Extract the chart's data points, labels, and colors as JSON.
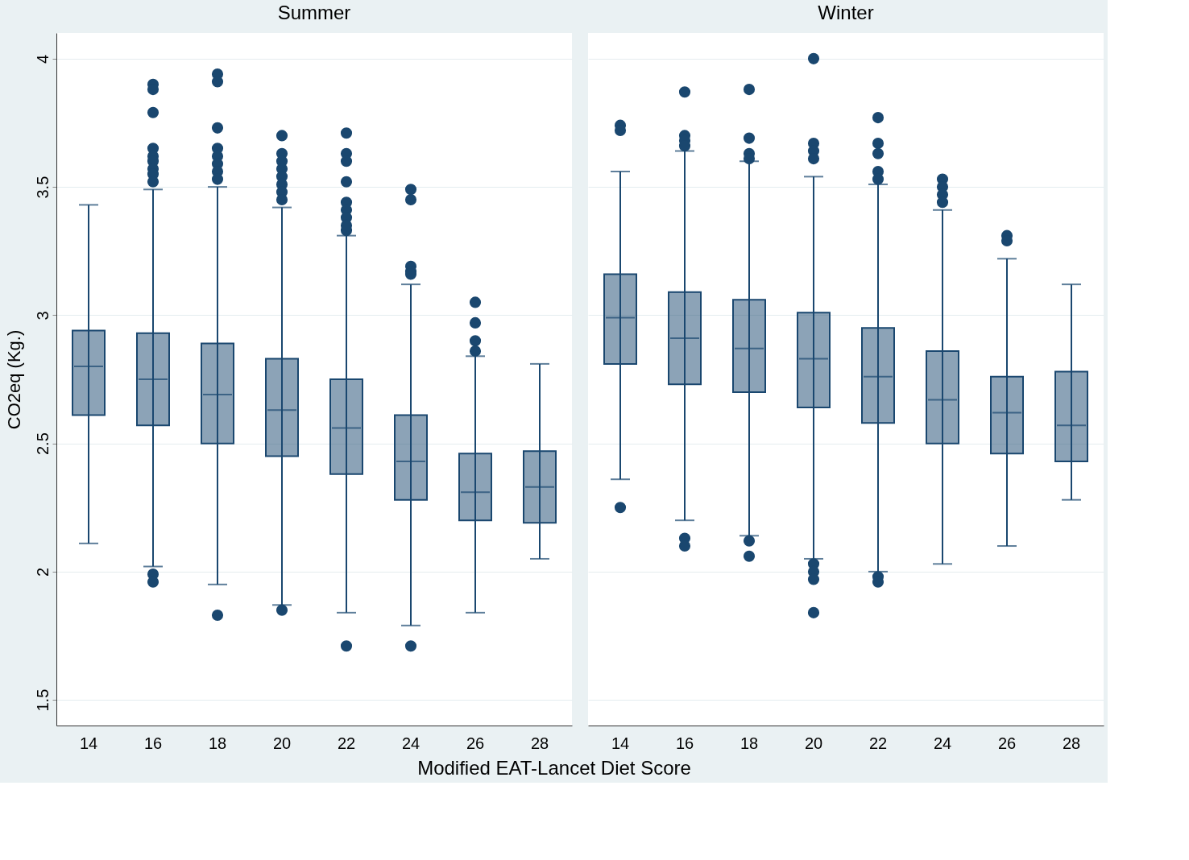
{
  "chart_data": [
    {
      "type": "box",
      "title": "Summer",
      "xlabel": "Modified EAT-Lancet Diet Score",
      "ylabel": "CO2eq (Kg.)",
      "categories": [
        "14",
        "16",
        "18",
        "20",
        "22",
        "24",
        "26",
        "28"
      ],
      "ylim": [
        1.4,
        4.1
      ],
      "yticks": [
        1.5,
        2,
        2.5,
        3,
        3.5,
        4
      ],
      "grid": "y",
      "series": [
        {
          "color": "#1a476f",
          "boxes": [
            {
              "low": 2.11,
              "q1": 2.61,
              "median": 2.8,
              "q3": 2.94,
              "high": 3.43
            },
            {
              "low": 2.02,
              "q1": 2.57,
              "median": 2.75,
              "q3": 2.93,
              "high": 3.49,
              "outliers": [
                3.9,
                3.88,
                3.79,
                3.65,
                3.62,
                3.6,
                3.57,
                3.55,
                3.52,
                1.99,
                1.96
              ]
            },
            {
              "low": 1.95,
              "q1": 2.5,
              "median": 2.69,
              "q3": 2.89,
              "high": 3.5,
              "outliers": [
                3.94,
                3.91,
                3.73,
                3.65,
                3.62,
                3.59,
                3.56,
                3.53,
                1.83
              ]
            },
            {
              "low": 1.87,
              "q1": 2.45,
              "median": 2.63,
              "q3": 2.83,
              "high": 3.42,
              "outliers": [
                3.7,
                3.63,
                3.6,
                3.57,
                3.54,
                3.51,
                3.48,
                3.45,
                1.85
              ]
            },
            {
              "low": 1.84,
              "q1": 2.38,
              "median": 2.56,
              "q3": 2.75,
              "high": 3.31,
              "outliers": [
                3.71,
                3.63,
                3.6,
                3.52,
                3.44,
                3.41,
                3.38,
                3.35,
                3.33,
                1.71
              ]
            },
            {
              "low": 1.79,
              "q1": 2.28,
              "median": 2.43,
              "q3": 2.61,
              "high": 3.12,
              "outliers": [
                3.49,
                3.45,
                3.19,
                3.17,
                3.16,
                1.71
              ]
            },
            {
              "low": 1.84,
              "q1": 2.2,
              "median": 2.31,
              "q3": 2.46,
              "high": 2.84,
              "outliers": [
                3.05,
                2.97,
                2.9,
                2.86
              ]
            },
            {
              "low": 2.05,
              "q1": 2.19,
              "median": 2.33,
              "q3": 2.47,
              "high": 2.81
            }
          ]
        }
      ]
    },
    {
      "type": "box",
      "title": "Winter",
      "categories": [
        "14",
        "16",
        "18",
        "20",
        "22",
        "24",
        "26",
        "28"
      ],
      "ylim": [
        1.4,
        4.1
      ],
      "yticks": [
        1.5,
        2,
        2.5,
        3,
        3.5,
        4
      ],
      "tick_labels": "x",
      "grid": "y",
      "series": [
        {
          "color": "#1a476f",
          "boxes": [
            {
              "low": 2.36,
              "q1": 2.81,
              "median": 2.99,
              "q3": 3.16,
              "high": 3.56,
              "outliers": [
                3.74,
                3.72,
                2.25
              ]
            },
            {
              "low": 2.2,
              "q1": 2.73,
              "median": 2.91,
              "q3": 3.09,
              "high": 3.64,
              "outliers": [
                3.87,
                3.7,
                3.68,
                3.66,
                2.13,
                2.1
              ]
            },
            {
              "low": 2.14,
              "q1": 2.7,
              "median": 2.87,
              "q3": 3.06,
              "high": 3.6,
              "outliers": [
                3.88,
                3.69,
                3.63,
                3.61,
                2.12,
                2.06
              ]
            },
            {
              "low": 2.05,
              "q1": 2.64,
              "median": 2.83,
              "q3": 3.01,
              "high": 3.54,
              "outliers": [
                4.0,
                3.67,
                3.64,
                3.61,
                2.03,
                2.0,
                1.97,
                1.84
              ]
            },
            {
              "low": 2.0,
              "q1": 2.58,
              "median": 2.76,
              "q3": 2.95,
              "high": 3.51,
              "outliers": [
                3.77,
                3.67,
                3.63,
                3.56,
                3.53,
                1.98,
                1.96
              ]
            },
            {
              "low": 2.03,
              "q1": 2.5,
              "median": 2.67,
              "q3": 2.86,
              "high": 3.41,
              "outliers": [
                3.53,
                3.5,
                3.47,
                3.44
              ]
            },
            {
              "low": 2.1,
              "q1": 2.46,
              "median": 2.62,
              "q3": 2.76,
              "high": 3.22,
              "outliers": [
                3.31,
                3.29
              ]
            },
            {
              "low": 2.28,
              "q1": 2.43,
              "median": 2.57,
              "q3": 2.78,
              "high": 3.12
            }
          ]
        }
      ]
    }
  ]
}
